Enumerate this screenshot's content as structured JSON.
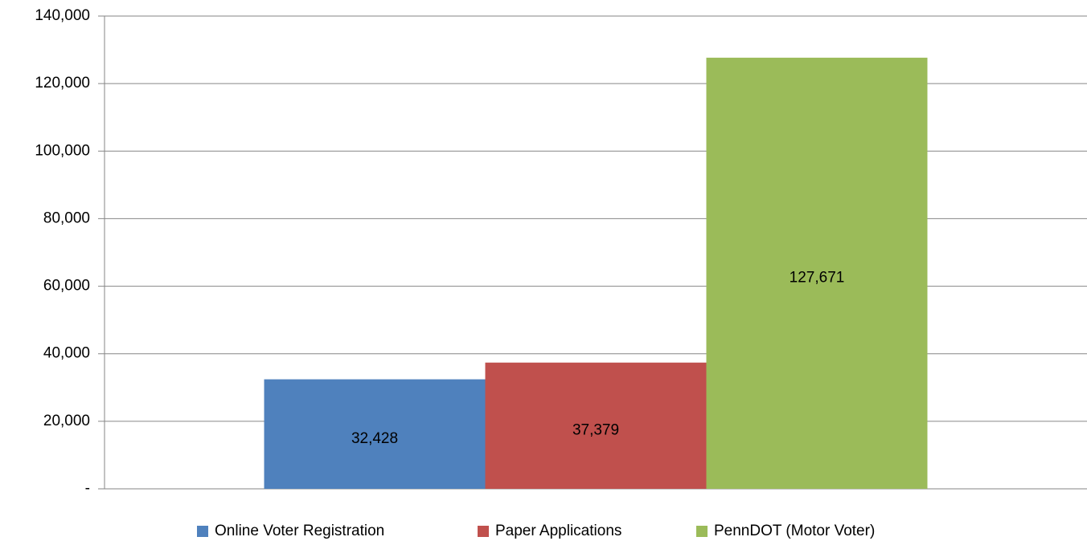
{
  "chart_data": {
    "type": "bar",
    "categories": [
      null
    ],
    "series": [
      {
        "name": "Online Voter Registration",
        "color": "#4f81bd",
        "values": [
          32428
        ],
        "value_labels": [
          "32,428"
        ]
      },
      {
        "name": "Paper Applications",
        "color": "#c0504d",
        "values": [
          37379
        ],
        "value_labels": [
          "37,379"
        ]
      },
      {
        "name": "PennDOT (Motor Voter)",
        "color": "#9bbb59",
        "values": [
          127671
        ],
        "value_labels": [
          "127,671"
        ]
      }
    ],
    "ylim": [
      0,
      140000
    ],
    "yticks": [
      {
        "value": 0,
        "label": "-"
      },
      {
        "value": 20000,
        "label": "20,000"
      },
      {
        "value": 40000,
        "label": "40,000"
      },
      {
        "value": 60000,
        "label": "60,000"
      },
      {
        "value": 80000,
        "label": "80,000"
      },
      {
        "value": 100000,
        "label": "100,000"
      },
      {
        "value": 120000,
        "label": "120,000"
      },
      {
        "value": 140000,
        "label": "140,000"
      }
    ],
    "grid": true,
    "legend": "bottom"
  }
}
